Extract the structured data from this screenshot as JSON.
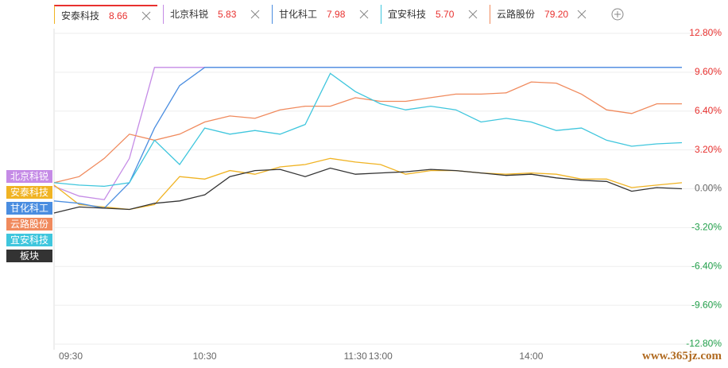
{
  "tabs": [
    {
      "name": "安泰科技",
      "price": "8.66",
      "color": "#f0b323"
    },
    {
      "name": "北京科锐",
      "price": "5.83",
      "color": "#c58be6"
    },
    {
      "name": "甘化科工",
      "price": "7.98",
      "color": "#4a8de0"
    },
    {
      "name": "宜安科技",
      "price": "5.70",
      "color": "#3fc6dd"
    },
    {
      "name": "云路股份",
      "price": "79.20",
      "color": "#f08a5d"
    }
  ],
  "watermark": "www.365jz.com",
  "chart_data": {
    "type": "line",
    "categories": [
      "09:30",
      null,
      null,
      null,
      null,
      null,
      "10:30",
      null,
      null,
      null,
      null,
      null,
      "11:30",
      "13:00",
      null,
      null,
      null,
      null,
      null,
      "14:00",
      null,
      null,
      null,
      null,
      null,
      null
    ],
    "ylim": [
      -12.8,
      12.8
    ],
    "yticks": [
      {
        "value": 12.8,
        "label": "12.80%"
      },
      {
        "value": 9.6,
        "label": "9.60%"
      },
      {
        "value": 6.4,
        "label": "6.40%"
      },
      {
        "value": 3.2,
        "label": "3.20%"
      },
      {
        "value": 0,
        "label": "0.00%"
      },
      {
        "value": -3.2,
        "label": "-3.20%"
      },
      {
        "value": -6.4,
        "label": "-6.40%"
      },
      {
        "value": -9.6,
        "label": "-9.60%"
      },
      {
        "value": -12.8,
        "label": "-12.80%"
      }
    ],
    "grid": true,
    "tick_colors": {
      "positive": "#e8312f",
      "negative": "#22a04b",
      "zero": "#666666"
    },
    "series": [
      {
        "name": "北京科锐",
        "color": "#c58be6",
        "values": [
          0.2,
          -0.6,
          -0.9,
          2.5,
          10,
          10,
          10,
          10,
          10,
          10,
          10,
          10,
          10,
          10,
          10,
          10,
          10,
          10,
          10,
          10,
          10,
          10,
          10,
          10,
          10,
          10
        ]
      },
      {
        "name": "安泰科技",
        "color": "#f0b323",
        "values": [
          0.3,
          -1.3,
          -1.5,
          -1.7,
          -1.3,
          1.0,
          0.8,
          1.5,
          1.2,
          1.8,
          2.0,
          2.5,
          2.2,
          2.0,
          1.2,
          1.5,
          1.5,
          1.3,
          1.2,
          1.3,
          1.2,
          0.8,
          0.8,
          0.1,
          0.3,
          0.5
        ]
      },
      {
        "name": "甘化科工",
        "color": "#4a8de0",
        "values": [
          -1.0,
          -1.2,
          -1.6,
          0.5,
          5.0,
          8.5,
          10,
          10,
          10,
          10,
          10,
          10,
          10,
          10,
          10,
          10,
          10,
          10,
          10,
          10,
          10,
          10,
          10,
          10,
          10,
          10
        ]
      },
      {
        "name": "云路股份",
        "color": "#f08a5d",
        "values": [
          0.5,
          1.0,
          2.5,
          4.5,
          4.0,
          4.5,
          5.5,
          6.0,
          5.8,
          6.5,
          6.8,
          6.8,
          7.5,
          7.2,
          7.2,
          7.5,
          7.8,
          7.8,
          7.9,
          8.8,
          8.7,
          7.8,
          6.5,
          6.2,
          7.0,
          7.0
        ]
      },
      {
        "name": "宜安科技",
        "color": "#3fc6dd",
        "values": [
          0.5,
          0.3,
          0.2,
          0.5,
          4.0,
          2.0,
          5.0,
          4.5,
          4.8,
          4.5,
          5.3,
          9.5,
          8.0,
          7.0,
          6.5,
          6.8,
          6.5,
          5.5,
          5.8,
          5.5,
          4.8,
          5.0,
          4.0,
          3.5,
          3.7,
          3.8
        ]
      },
      {
        "name": "板块",
        "color": "#333333",
        "values": [
          -2.0,
          -1.5,
          -1.6,
          -1.7,
          -1.2,
          -1.0,
          -0.5,
          1.0,
          1.5,
          1.6,
          1.0,
          1.7,
          1.2,
          1.3,
          1.4,
          1.6,
          1.5,
          1.3,
          1.1,
          1.2,
          0.9,
          0.7,
          0.6,
          -0.2,
          0.1,
          0.0
        ]
      }
    ]
  }
}
